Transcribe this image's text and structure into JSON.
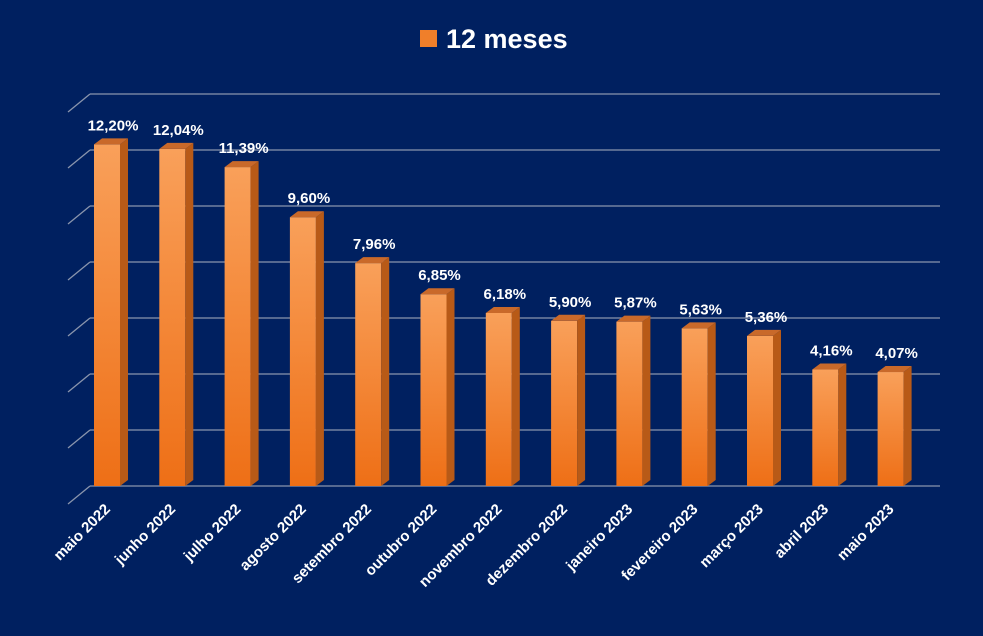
{
  "chart_data": {
    "type": "bar",
    "series": [
      {
        "name": "12 meses",
        "values": [
          12.2,
          12.04,
          11.39,
          9.6,
          7.96,
          6.85,
          6.18,
          5.9,
          5.87,
          5.63,
          5.36,
          4.16,
          4.07
        ],
        "labels": [
          "12,20%",
          "12,04%",
          "11,39%",
          "9,60%",
          "7,96%",
          "6,85%",
          "6,18%",
          "5,90%",
          "5,87%",
          "5,63%",
          "5,36%",
          "4,16%",
          "4,07%"
        ]
      }
    ],
    "categories": [
      "maio 2022",
      "junho 2022",
      "julho 2022",
      "agosto 2022",
      "setembro 2022",
      "outubro 2022",
      "novembro 2022",
      "dezembro 2022",
      "janeiro 2023",
      "fevereiro 2023",
      "março 2023",
      "abril 2023",
      "maio 2023"
    ],
    "ylim": [
      0,
      14
    ],
    "grid": true,
    "legend_position": "top-center",
    "colors": {
      "background": "#002060",
      "bar": "#f07f2a",
      "bar_light": "#f9a05a",
      "bar_side": "#b85a17",
      "bar_top": "#c9692a",
      "grid": "#8a95ad",
      "text": "#ffffff"
    }
  }
}
